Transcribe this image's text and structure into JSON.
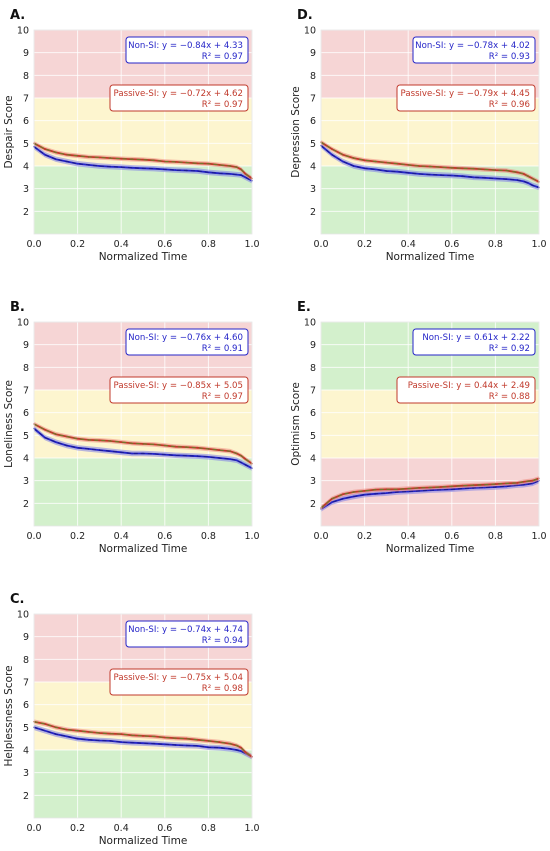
{
  "colors": {
    "zone_red": "#f6d5d5",
    "zone_yellow": "#fdf5cf",
    "zone_green": "#d3f0cc",
    "grid": "#ffffff",
    "non_si": "#2525c8",
    "non_si_band": "#7f7fe6",
    "passive_si": "#c0392b",
    "passive_si_band": "#ee8a80",
    "trend": "#6b7f2a",
    "text": "#222222"
  },
  "chart_data": [
    {
      "id": "despair",
      "panel_label": "A.",
      "type": "line",
      "xlabel": "Normalized Time",
      "ylabel": "Despair Score",
      "xlim": [
        0,
        1
      ],
      "ylim": [
        1,
        10
      ],
      "xticks": [
        "0.0",
        "0.2",
        "0.4",
        "0.6",
        "0.8",
        "1.0"
      ],
      "yticks": [
        "2",
        "3",
        "4",
        "5",
        "6",
        "7",
        "8",
        "9",
        "10"
      ],
      "zones": [
        {
          "from": 1,
          "to": 4,
          "color": "zone_green"
        },
        {
          "from": 4,
          "to": 7,
          "color": "zone_yellow"
        },
        {
          "from": 7,
          "to": 10,
          "color": "zone_red"
        }
      ],
      "grid": true,
      "x": [
        0.0,
        0.05,
        0.1,
        0.15,
        0.2,
        0.25,
        0.3,
        0.35,
        0.4,
        0.45,
        0.5,
        0.55,
        0.6,
        0.65,
        0.7,
        0.75,
        0.8,
        0.85,
        0.9,
        0.93,
        0.95,
        0.97,
        1.0
      ],
      "series": [
        {
          "name": "Non-SI",
          "color": "non_si",
          "band": 0.12,
          "values": [
            4.85,
            4.5,
            4.3,
            4.2,
            4.1,
            4.05,
            4.0,
            3.97,
            3.95,
            3.92,
            3.9,
            3.88,
            3.85,
            3.82,
            3.8,
            3.78,
            3.72,
            3.68,
            3.65,
            3.62,
            3.6,
            3.5,
            3.35
          ]
        },
        {
          "name": "Passive-SI",
          "color": "passive_si",
          "band": 0.1,
          "values": [
            5.0,
            4.75,
            4.6,
            4.5,
            4.45,
            4.4,
            4.38,
            4.35,
            4.32,
            4.3,
            4.28,
            4.25,
            4.2,
            4.18,
            4.15,
            4.12,
            4.1,
            4.05,
            4.0,
            3.95,
            3.85,
            3.65,
            3.45
          ]
        }
      ],
      "annotations": [
        {
          "series": "Non-SI",
          "equation": "Non-SI: y = −0.84x + 4.33",
          "r2": "R² = 0.97"
        },
        {
          "series": "Passive-SI",
          "equation": "Passive-SI: y = −0.72x + 4.62",
          "r2": "R² = 0.97"
        }
      ]
    },
    {
      "id": "loneliness",
      "panel_label": "B.",
      "type": "line",
      "xlabel": "Normalized Time",
      "ylabel": "Loneliness Score",
      "xlim": [
        0,
        1
      ],
      "ylim": [
        1,
        10
      ],
      "xticks": [
        "0.0",
        "0.2",
        "0.4",
        "0.6",
        "0.8",
        "1.0"
      ],
      "yticks": [
        "2",
        "3",
        "4",
        "5",
        "6",
        "7",
        "8",
        "9",
        "10"
      ],
      "zones": [
        {
          "from": 1,
          "to": 4,
          "color": "zone_green"
        },
        {
          "from": 4,
          "to": 7,
          "color": "zone_yellow"
        },
        {
          "from": 7,
          "to": 10,
          "color": "zone_red"
        }
      ],
      "grid": true,
      "x": [
        0.0,
        0.05,
        0.1,
        0.15,
        0.2,
        0.25,
        0.3,
        0.35,
        0.4,
        0.45,
        0.5,
        0.55,
        0.6,
        0.65,
        0.7,
        0.75,
        0.8,
        0.85,
        0.9,
        0.93,
        0.95,
        0.97,
        1.0
      ],
      "series": [
        {
          "name": "Non-SI",
          "color": "non_si",
          "band": 0.12,
          "values": [
            5.3,
            4.9,
            4.7,
            4.55,
            4.45,
            4.4,
            4.35,
            4.3,
            4.25,
            4.2,
            4.2,
            4.18,
            4.15,
            4.12,
            4.1,
            4.08,
            4.05,
            4.0,
            3.95,
            3.9,
            3.8,
            3.7,
            3.55
          ]
        },
        {
          "name": "Passive-SI",
          "color": "passive_si",
          "band": 0.1,
          "values": [
            5.5,
            5.25,
            5.05,
            4.95,
            4.85,
            4.8,
            4.78,
            4.75,
            4.7,
            4.65,
            4.62,
            4.6,
            4.55,
            4.5,
            4.48,
            4.45,
            4.4,
            4.35,
            4.3,
            4.2,
            4.1,
            3.95,
            3.75
          ]
        }
      ],
      "annotations": [
        {
          "series": "Non-SI",
          "equation": "Non-SI: y = −0.76x + 4.60",
          "r2": "R² = 0.91"
        },
        {
          "series": "Passive-SI",
          "equation": "Passive-SI: y = −0.85x + 5.05",
          "r2": "R² = 0.97"
        }
      ]
    },
    {
      "id": "helplessness",
      "panel_label": "C.",
      "type": "line",
      "xlabel": "Normalized Time",
      "ylabel": "Helplessness Score",
      "xlim": [
        0,
        1
      ],
      "ylim": [
        1,
        10
      ],
      "xticks": [
        "0.0",
        "0.2",
        "0.4",
        "0.6",
        "0.8",
        "1.0"
      ],
      "yticks": [
        "2",
        "3",
        "4",
        "5",
        "6",
        "7",
        "8",
        "9",
        "10"
      ],
      "zones": [
        {
          "from": 1,
          "to": 4,
          "color": "zone_green"
        },
        {
          "from": 4,
          "to": 7,
          "color": "zone_yellow"
        },
        {
          "from": 7,
          "to": 10,
          "color": "zone_red"
        }
      ],
      "grid": true,
      "x": [
        0.0,
        0.05,
        0.1,
        0.15,
        0.2,
        0.25,
        0.3,
        0.35,
        0.4,
        0.45,
        0.5,
        0.55,
        0.6,
        0.65,
        0.7,
        0.75,
        0.8,
        0.85,
        0.9,
        0.93,
        0.95,
        0.97,
        1.0
      ],
      "series": [
        {
          "name": "Non-SI",
          "color": "non_si",
          "band": 0.12,
          "values": [
            5.0,
            4.85,
            4.7,
            4.6,
            4.5,
            4.45,
            4.42,
            4.4,
            4.35,
            4.32,
            4.3,
            4.28,
            4.25,
            4.22,
            4.2,
            4.18,
            4.12,
            4.1,
            4.05,
            4.0,
            3.95,
            3.85,
            3.7
          ]
        },
        {
          "name": "Passive-SI",
          "color": "passive_si",
          "band": 0.1,
          "values": [
            5.25,
            5.15,
            5.0,
            4.9,
            4.85,
            4.8,
            4.75,
            4.72,
            4.7,
            4.65,
            4.62,
            4.6,
            4.55,
            4.52,
            4.5,
            4.45,
            4.4,
            4.35,
            4.28,
            4.2,
            4.1,
            3.9,
            3.7
          ]
        }
      ],
      "annotations": [
        {
          "series": "Non-SI",
          "equation": "Non-SI: y = −0.74x + 4.74",
          "r2": "R² = 0.94"
        },
        {
          "series": "Passive-SI",
          "equation": "Passive-SI: y = −0.75x + 5.04",
          "r2": "R² = 0.98"
        }
      ]
    },
    {
      "id": "depression",
      "panel_label": "D.",
      "type": "line",
      "xlabel": "Normalized Time",
      "ylabel": "Depression Score",
      "xlim": [
        0,
        1
      ],
      "ylim": [
        1,
        10
      ],
      "xticks": [
        "0.0",
        "0.2",
        "0.4",
        "0.6",
        "0.8",
        "1.0"
      ],
      "yticks": [
        "2",
        "3",
        "4",
        "5",
        "6",
        "7",
        "8",
        "9",
        "10"
      ],
      "zones": [
        {
          "from": 1,
          "to": 4,
          "color": "zone_green"
        },
        {
          "from": 4,
          "to": 7,
          "color": "zone_yellow"
        },
        {
          "from": 7,
          "to": 10,
          "color": "zone_red"
        }
      ],
      "grid": true,
      "x": [
        0.0,
        0.05,
        0.1,
        0.15,
        0.2,
        0.25,
        0.3,
        0.35,
        0.4,
        0.45,
        0.5,
        0.55,
        0.6,
        0.65,
        0.7,
        0.75,
        0.8,
        0.85,
        0.9,
        0.93,
        0.95,
        0.97,
        1.0
      ],
      "series": [
        {
          "name": "Non-SI",
          "color": "non_si",
          "band": 0.12,
          "values": [
            4.9,
            4.5,
            4.2,
            4.0,
            3.9,
            3.85,
            3.78,
            3.75,
            3.7,
            3.65,
            3.62,
            3.6,
            3.58,
            3.55,
            3.5,
            3.48,
            3.45,
            3.42,
            3.38,
            3.32,
            3.25,
            3.15,
            3.05
          ]
        },
        {
          "name": "Passive-SI",
          "color": "passive_si",
          "band": 0.1,
          "values": [
            5.05,
            4.75,
            4.5,
            4.35,
            4.25,
            4.2,
            4.15,
            4.1,
            4.05,
            4.0,
            3.98,
            3.95,
            3.92,
            3.9,
            3.88,
            3.85,
            3.82,
            3.8,
            3.72,
            3.65,
            3.55,
            3.45,
            3.3
          ]
        }
      ],
      "annotations": [
        {
          "series": "Non-SI",
          "equation": "Non-SI: y = −0.78x + 4.02",
          "r2": "R² = 0.93"
        },
        {
          "series": "Passive-SI",
          "equation": "Passive-SI: y = −0.79x + 4.45",
          "r2": "R² = 0.96"
        }
      ]
    },
    {
      "id": "optimism",
      "panel_label": "E.",
      "type": "line",
      "xlabel": "Normalized Time",
      "ylabel": "Optimism Score",
      "xlim": [
        0,
        1
      ],
      "ylim": [
        1,
        10
      ],
      "xticks": [
        "0.0",
        "0.2",
        "0.4",
        "0.6",
        "0.8",
        "1.0"
      ],
      "yticks": [
        "2",
        "3",
        "4",
        "5",
        "6",
        "7",
        "8",
        "9",
        "10"
      ],
      "zones": [
        {
          "from": 1,
          "to": 4,
          "color": "zone_red"
        },
        {
          "from": 4,
          "to": 7,
          "color": "zone_yellow"
        },
        {
          "from": 7,
          "to": 10,
          "color": "zone_green"
        }
      ],
      "grid": true,
      "x": [
        0.0,
        0.05,
        0.1,
        0.15,
        0.2,
        0.25,
        0.3,
        0.35,
        0.4,
        0.45,
        0.5,
        0.55,
        0.6,
        0.65,
        0.7,
        0.75,
        0.8,
        0.85,
        0.9,
        0.93,
        0.95,
        0.97,
        1.0
      ],
      "series": [
        {
          "name": "Non-SI",
          "color": "non_si",
          "band": 0.12,
          "values": [
            1.75,
            2.05,
            2.2,
            2.3,
            2.38,
            2.42,
            2.45,
            2.5,
            2.52,
            2.55,
            2.58,
            2.6,
            2.62,
            2.65,
            2.68,
            2.7,
            2.72,
            2.75,
            2.8,
            2.82,
            2.85,
            2.88,
            3.0
          ]
        },
        {
          "name": "Passive-SI",
          "color": "passive_si",
          "band": 0.1,
          "values": [
            1.8,
            2.2,
            2.4,
            2.5,
            2.55,
            2.6,
            2.62,
            2.62,
            2.65,
            2.68,
            2.7,
            2.72,
            2.75,
            2.78,
            2.8,
            2.82,
            2.85,
            2.88,
            2.9,
            2.95,
            2.98,
            3.0,
            3.1
          ]
        }
      ],
      "annotations": [
        {
          "series": "Non-SI",
          "equation": "Non-SI: y = 0.61x + 2.22",
          "r2": "R² = 0.92"
        },
        {
          "series": "Passive-SI",
          "equation": "Passive-SI: y = 0.44x + 2.49",
          "r2": "R² = 0.88"
        }
      ]
    }
  ]
}
